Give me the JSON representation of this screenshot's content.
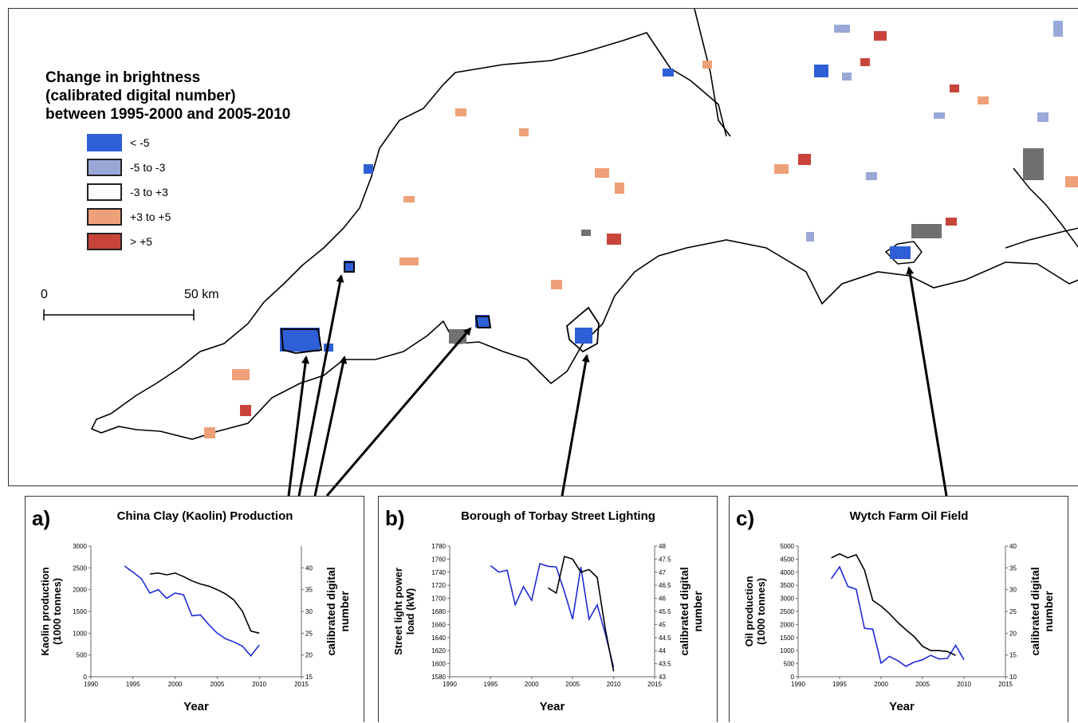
{
  "legend": {
    "title_lines": [
      "Change in brightness",
      "(calibrated digital number)",
      "between 1995-2000 and 2005-2010"
    ],
    "items": [
      {
        "label": "< -5",
        "color": "#2f5fd6"
      },
      {
        "label": "-5 to -3",
        "color": "#9aa8d8"
      },
      {
        "label": "-3 to +3",
        "color": "#ffffff"
      },
      {
        "label": "+3 to +5",
        "color": "#eea078"
      },
      {
        "label": "> +5",
        "color": "#c8443a"
      }
    ]
  },
  "scale_bar": {
    "start": "0",
    "end": "50 km"
  },
  "colors": {
    "coast": "#000000",
    "gray_area": "#707070",
    "series_black": "#000000",
    "series_blue": "#1f2bd6"
  },
  "panels": [
    {
      "letter": "a)",
      "title": "China Clay (Kaolin) Production",
      "chart_data": {
        "type": "line",
        "xlabel": "Year",
        "ylabel": "Kaolin production (1000 tonnes)",
        "ylabel_lines": [
          "Kaolin production",
          "(1000 tonnes)"
        ],
        "y2label": "calibrated digital number",
        "y2label_lines": [
          "calibrated digital",
          "number"
        ],
        "xlim": [
          1990,
          2015
        ],
        "xticks": [
          1990,
          1995,
          2000,
          2005,
          2010,
          2015
        ],
        "ylim": [
          0,
          3000
        ],
        "yticks": [
          0,
          500,
          1000,
          1500,
          2000,
          2500,
          3000
        ],
        "y2lim": [
          15,
          45
        ],
        "y2ticks": [
          15,
          20,
          25,
          30,
          35,
          40
        ],
        "series": [
          {
            "axis": "left",
            "color": "#1f2bd6",
            "x": [
              1994,
              1995,
              1996,
              1997,
              1998,
              1999,
              2000,
              2001,
              2002,
              2003,
              2004,
              2005,
              2006,
              2007,
              2008,
              2009,
              2010
            ],
            "y": [
              2540,
              2400,
              2250,
              1920,
              2000,
              1800,
              1920,
              1880,
              1400,
              1420,
              1200,
              1000,
              870,
              800,
              700,
              480,
              730
            ]
          },
          {
            "axis": "right",
            "color": "#000000",
            "x": [
              1997,
              1998,
              1999,
              2000,
              2001,
              2002,
              2003,
              2004,
              2005,
              2006,
              2007,
              2008,
              2009,
              2010
            ],
            "y": [
              38.6,
              38.8,
              38.4,
              38.8,
              38.0,
              37.0,
              36.3,
              35.8,
              35.0,
              34.0,
              32.6,
              30.0,
              25.5,
              25.0
            ]
          }
        ]
      }
    },
    {
      "letter": "b)",
      "title": "Borough of Torbay Street Lighting",
      "chart_data": {
        "type": "line",
        "xlabel": "Year",
        "ylabel": "Street light power load (kW)",
        "ylabel_lines": [
          "Street light power",
          "load (kW)"
        ],
        "y2label": "calibrated digital number",
        "y2label_lines": [
          "calibrated digital",
          "number"
        ],
        "xlim": [
          1990,
          2015
        ],
        "xticks": [
          1990,
          1995,
          2000,
          2005,
          2010,
          2015
        ],
        "ylim": [
          1580,
          1780
        ],
        "yticks": [
          1580,
          1600,
          1620,
          1640,
          1660,
          1680,
          1700,
          1720,
          1740,
          1760,
          1780
        ],
        "y2lim": [
          43,
          48
        ],
        "y2ticks": [
          43,
          43.5,
          44,
          44.5,
          45,
          45.5,
          46,
          46.5,
          47,
          47.5,
          48
        ],
        "series": [
          {
            "axis": "left",
            "color": "#1f2bd6",
            "x": [
              1995,
              1996,
              1997,
              1998,
              1999,
              2000,
              2001,
              2002,
              2003,
              2004,
              2005,
              2006,
              2007,
              2008,
              2009,
              2010
            ],
            "y": [
              1750,
              1740,
              1743,
              1690,
              1718,
              1697,
              1753,
              1749,
              1748,
              1710,
              1668,
              1748,
              1668,
              1690,
              1645,
              1594
            ]
          },
          {
            "axis": "right",
            "color": "#000000",
            "x": [
              2002,
              2003,
              2004,
              2005,
              2006,
              2007,
              2008,
              2009,
              2010
            ],
            "y": [
              46.4,
              46.2,
              47.6,
              47.5,
              47.0,
              47.1,
              46.8,
              44.8,
              43.2
            ]
          }
        ]
      }
    },
    {
      "letter": "c)",
      "title": "Wytch Farm Oil Field",
      "chart_data": {
        "type": "line",
        "xlabel": "Year",
        "ylabel": "Oil production (1000 tonnes)",
        "ylabel_lines": [
          "Oil production",
          "(1000 tonnes)"
        ],
        "y2label": "calibrated digital number",
        "y2label_lines": [
          "calibrated digital",
          "number"
        ],
        "xlim": [
          1990,
          2015
        ],
        "xticks": [
          1990,
          1995,
          2000,
          2005,
          2010,
          2015
        ],
        "ylim": [
          0,
          5000
        ],
        "yticks": [
          0,
          500,
          1000,
          1500,
          2000,
          2500,
          3000,
          3500,
          4000,
          4500,
          5000
        ],
        "y2lim": [
          10,
          40
        ],
        "y2ticks": [
          10,
          15,
          20,
          25,
          30,
          35,
          40
        ],
        "series": [
          {
            "axis": "left",
            "color": "#1f2bd6",
            "x": [
              1994,
              1995,
              1996,
              1997,
              1998,
              1999,
              2000,
              2001,
              2002,
              2003,
              2004,
              2005,
              2006,
              2007,
              2008,
              2009,
              2010
            ],
            "y": [
              3750,
              4200,
              3450,
              3350,
              1850,
              1820,
              520,
              780,
              620,
              400,
              560,
              650,
              820,
              680,
              700,
              1200,
              650
            ]
          },
          {
            "axis": "right",
            "color": "#000000",
            "x": [
              1994,
              1995,
              1996,
              1997,
              1998,
              1999,
              2000,
              2001,
              2002,
              2003,
              2004,
              2005,
              2006,
              2007,
              2008,
              2009
            ],
            "y": [
              37.3,
              38.2,
              37.3,
              38.0,
              34.5,
              27.5,
              26.2,
              24.5,
              22.5,
              20.8,
              19.2,
              17.0,
              16.0,
              16.0,
              15.8,
              14.9
            ]
          }
        ]
      }
    }
  ]
}
